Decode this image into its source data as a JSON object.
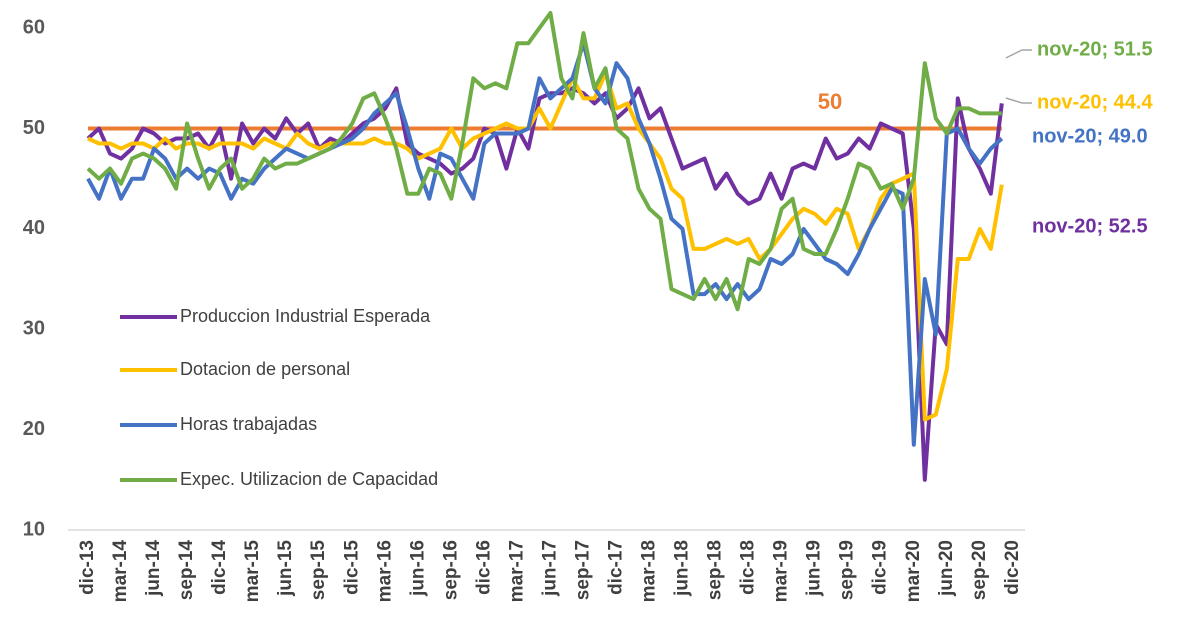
{
  "chart_data": {
    "type": "line",
    "categories": [
      "dic-13",
      null,
      null,
      "mar-14",
      null,
      null,
      "jun-14",
      null,
      null,
      "sep-14",
      null,
      null,
      "dic-14",
      null,
      null,
      "mar-15",
      null,
      null,
      "jun-15",
      null,
      null,
      "sep-15",
      null,
      null,
      "dic-15",
      null,
      null,
      "mar-16",
      null,
      null,
      "jun-16",
      null,
      null,
      "sep-16",
      null,
      null,
      "dic-16",
      null,
      null,
      "mar-17",
      null,
      null,
      "jun-17",
      null,
      null,
      "sep-17",
      null,
      null,
      "dic-17",
      null,
      null,
      "mar-18",
      null,
      null,
      "jun-18",
      null,
      null,
      "sep-18",
      null,
      null,
      "dic-18",
      null,
      null,
      "mar-19",
      null,
      null,
      "jun-19",
      null,
      null,
      "sep-19",
      null,
      null,
      "dic-19",
      null,
      null,
      "mar-20",
      null,
      null,
      "jun-20",
      null,
      null,
      "sep-20",
      null,
      null,
      "dic-20"
    ],
    "series": [
      {
        "name": "Produccion Industrial Esperada",
        "color": "#7030a0",
        "end_label": "nov-20; 52.5",
        "values": [
          49,
          50,
          47.5,
          47,
          48,
          50,
          49.5,
          48.5,
          49,
          49,
          49.5,
          48,
          50,
          45,
          50.5,
          48.5,
          50,
          49,
          51,
          49.5,
          50.5,
          48,
          49,
          48.5,
          49.5,
          50.5,
          51,
          52,
          54,
          48.5,
          47.5,
          47,
          46.5,
          45.5,
          46,
          47,
          50,
          49.5,
          46,
          50,
          48,
          53,
          53.5,
          53.5,
          54,
          53.5,
          52.5,
          53.5,
          51,
          52,
          54,
          51,
          52,
          49,
          46,
          46.5,
          47,
          44,
          45.5,
          43.5,
          42.5,
          43,
          45.5,
          43,
          46,
          46.5,
          46,
          49,
          47,
          47.5,
          49,
          48,
          50.5,
          50,
          49.5,
          40,
          15,
          30.5,
          28.5,
          53,
          48,
          46,
          43.5,
          52.5,
          null
        ]
      },
      {
        "name": "Dotacion de personal",
        "color": "#ffc000",
        "end_label": "nov-20; 44.4",
        "values": [
          49,
          48.5,
          48.5,
          48,
          48.5,
          48.5,
          48,
          49,
          48,
          48.5,
          48.5,
          48,
          48.5,
          48.5,
          48.5,
          48,
          49,
          48.5,
          48,
          49.5,
          48.5,
          48,
          48.5,
          48.5,
          48.5,
          48.5,
          49,
          48.5,
          48.5,
          48,
          47,
          47.5,
          48,
          50,
          48,
          49,
          49.5,
          50,
          50.5,
          50,
          50,
          52,
          50,
          52.5,
          55,
          53,
          53,
          55.5,
          52,
          52.5,
          50,
          48.5,
          47,
          44,
          43,
          38,
          38,
          38.5,
          39,
          38.5,
          39,
          37,
          38,
          39.5,
          41,
          42,
          41.5,
          40.5,
          42,
          41.5,
          38,
          40,
          43,
          44.5,
          45,
          45.5,
          21,
          21.5,
          26,
          37,
          37,
          40,
          38,
          44.4,
          null
        ]
      },
      {
        "name": "Horas trabajadas",
        "color": "#4472c4",
        "end_label": "nov-20; 49.0",
        "values": [
          45,
          43,
          46,
          43,
          45,
          45,
          48,
          47,
          45,
          46,
          45,
          46,
          45.5,
          43,
          45,
          44.5,
          46,
          47,
          48,
          47.5,
          47,
          47.5,
          48,
          48.5,
          49,
          50,
          51.5,
          52.5,
          53.5,
          50,
          46,
          43,
          47.5,
          47,
          45,
          43,
          48.5,
          49.5,
          49.5,
          49.5,
          50,
          55,
          53,
          54,
          55,
          58.5,
          54,
          52.5,
          56.5,
          55,
          51,
          48.5,
          45,
          41,
          40,
          33.5,
          33.5,
          34.5,
          33,
          34.5,
          33,
          34,
          37,
          36.5,
          37.5,
          40,
          38.5,
          37,
          36.5,
          35.5,
          37.5,
          40,
          42,
          44,
          43.5,
          18.5,
          35,
          29.5,
          49.5,
          50,
          48,
          46.5,
          48,
          49,
          null
        ]
      },
      {
        "name": "Expec. Utilizacion de Capacidad",
        "color": "#70ad47",
        "end_label": "nov-20; 51.5",
        "values": [
          46,
          45,
          46,
          44.5,
          47,
          47.5,
          47,
          46,
          44,
          50.5,
          47,
          44,
          46,
          47,
          44,
          45,
          47,
          46,
          46.5,
          46.5,
          47,
          47.5,
          48,
          49,
          50.5,
          53,
          53.5,
          51,
          48,
          43.5,
          43.5,
          46,
          45.5,
          43,
          48.5,
          55,
          54,
          54.5,
          54,
          58.5,
          58.5,
          60,
          61.5,
          55,
          53,
          59.5,
          54,
          56,
          50,
          49,
          44,
          42,
          41,
          34,
          33.5,
          33,
          35,
          33,
          35,
          32,
          37,
          36.5,
          38,
          42,
          43,
          38,
          37.5,
          37.5,
          40,
          43,
          46.5,
          46,
          44,
          44.5,
          42,
          45,
          56.5,
          51,
          49.5,
          52,
          52,
          51.5,
          51.5,
          51.5,
          null
        ]
      }
    ],
    "reference_line": {
      "value": 50,
      "color": "#ed7d31"
    },
    "ylim": [
      10,
      62.5
    ],
    "yticks": [
      10,
      20,
      30,
      40,
      50,
      60
    ],
    "grid": false,
    "legend_position": "left"
  }
}
